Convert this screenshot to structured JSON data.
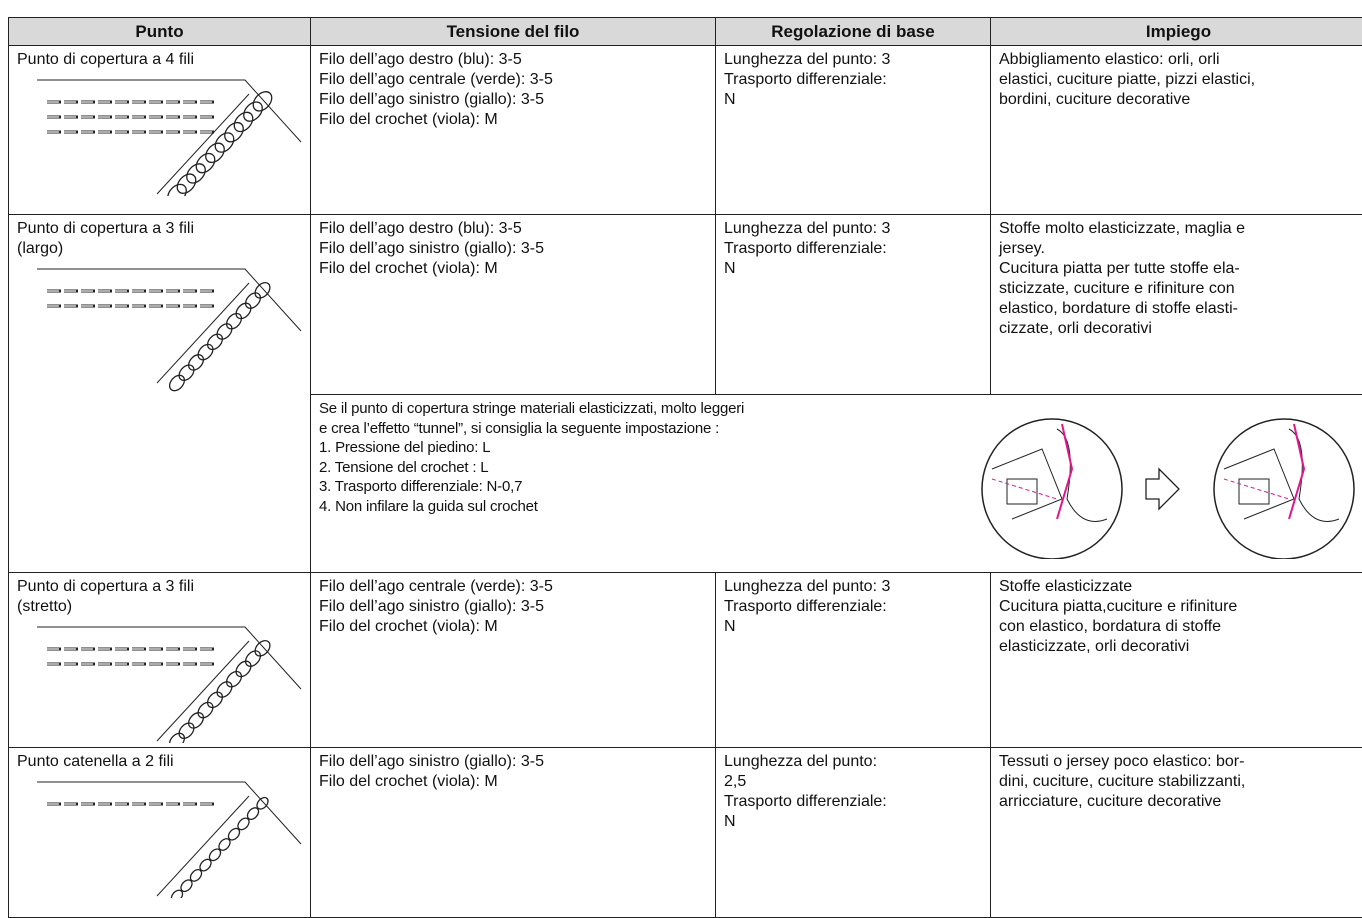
{
  "table": {
    "header": [
      "Punto",
      "Tensione del filo",
      "Regolazione di base",
      "Impiego"
    ],
    "rows": [
      {
        "punto": [
          "Punto di copertura a 4 fili"
        ],
        "tensione": [
          "Filo dell’ago destro (blu): 3-5",
          "Filo dell’ago centrale (verde): 3-5",
          "Filo dell’ago sinistro (giallo): 3-5",
          "Filo del crochet (viola): M"
        ],
        "regolazione": [
          "Lunghezza del punto: 3",
          "Trasporto differenziale:",
          "N"
        ],
        "impiego": [
          "Abbigliamento elastico: orli, orli",
          "elastici, cuciture piatte, pizzi elastici,",
          "bordini, cuciture decorative"
        ]
      },
      {
        "punto": [
          "Punto di copertura a 3 fili",
          "(largo)"
        ],
        "tensione": [
          "Filo dell’ago destro (blu): 3-5",
          "Filo dell’ago sinistro (giallo): 3-5",
          "Filo del crochet (viola): M"
        ],
        "regolazione": [
          "Lunghezza del punto: 3",
          "Trasporto differenziale:",
          "N"
        ],
        "impiego": [
          "Stoffe molto elasticizzate, maglia e",
          "jersey.",
          "Cucitura piatta per tutte stoffe ela-",
          "sticizzate, cuciture e rifiniture con",
          "elastico, bordature di stoffe elasti-",
          "cizzate, orli decorativi"
        ]
      },
      {
        "punto": [
          "Punto di copertura a 3 fili",
          "(stretto)"
        ],
        "tensione": [
          "Filo dell’ago centrale (verde): 3-5",
          "Filo dell’ago sinistro (giallo): 3-5",
          "Filo del crochet (viola): M"
        ],
        "regolazione": [
          "Lunghezza del punto: 3",
          "Trasporto differenziale:",
          "N"
        ],
        "impiego": [
          "Stoffe elasticizzate",
          "Cucitura piatta,cuciture e rifiniture",
          "con elastico, bordatura di stoffe",
          "elasticizzate, orli decorativi"
        ]
      },
      {
        "punto": [
          "Punto catenella a 2 fili"
        ],
        "tensione": [
          "Filo dell’ago sinistro (giallo): 3-5",
          "Filo del crochet (viola): M"
        ],
        "regolazione": [
          "Lunghezza del punto:",
          "2,5",
          "Trasporto differenziale:",
          "N"
        ],
        "impiego": [
          "Tessuti o jersey poco elastico: bor-",
          "dini, cuciture, cuciture stabilizzanti,",
          "arricciature, cuciture decorative"
        ]
      }
    ],
    "note": [
      "Se il punto di copertura stringe materiali elasticizzati, molto leggeri",
      "e crea l’effetto “tunnel”, si consiglia la seguente impostazione :",
      "1. Pressione del piedino: L",
      "2. Tensione del  crochet : L",
      "3. Trasporto differenziale: N-0,7",
      "4. Non infilare la guida sul crochet"
    ]
  }
}
